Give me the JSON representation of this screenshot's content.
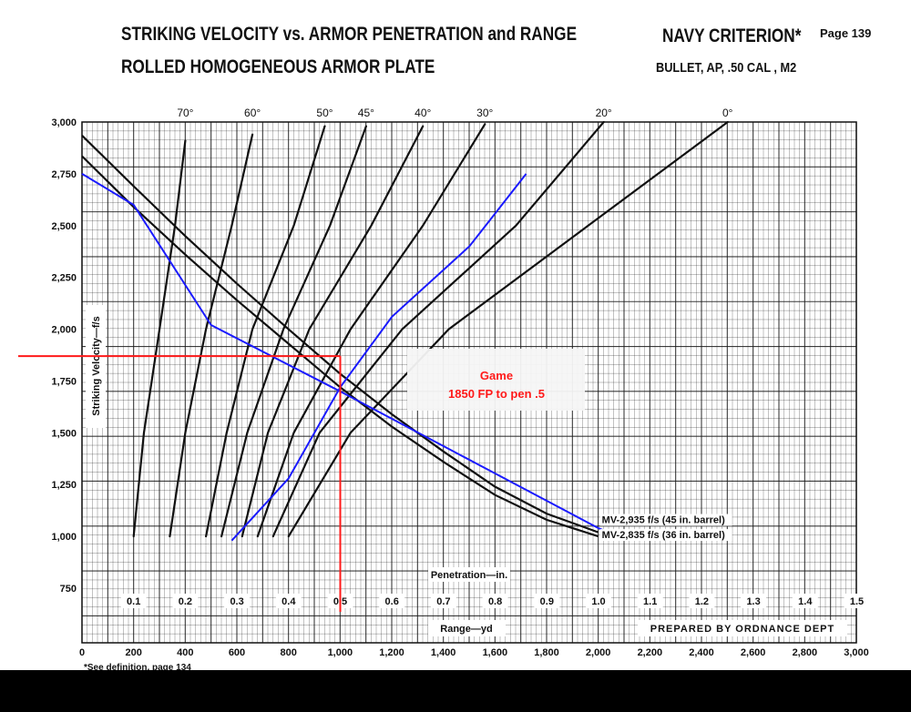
{
  "header": {
    "title_line1": "STRIKING VELOCITY vs. ARMOR PENETRATION and RANGE",
    "title_line2": "ROLLED HOMOGENEOUS ARMOR PLATE",
    "criterion": "NAVY CRITERION*",
    "page": "Page 139",
    "bullet": "BULLET, AP, .50 CAL , M2"
  },
  "footnote": "*See definition, page 134",
  "prepared_by": "PREPARED BY ORDNANCE DEPT",
  "annotation": {
    "line1": "Game",
    "line2": "1850 FP to pen .5"
  },
  "colors": {
    "grid": "#1a1a1a",
    "curves": "#111111",
    "overlay_blue": "#1a1aff",
    "overlay_red": "#ff1a1a",
    "annotation_text": "#ff1a1a"
  },
  "chart_data": {
    "type": "line",
    "title": "STRIKING VELOCITY vs. ARMOR PENETRATION and RANGE",
    "ylabel": "Striking Velocity—f/s",
    "xlabel_penetration": "Penetration—in.",
    "xlabel_range": "Range—yd",
    "ylim": [
      750,
      3000
    ],
    "y_ticks": [
      "3,000",
      "2,750",
      "2,500",
      "2,250",
      "2,000",
      "1,750",
      "1,500",
      "1,250",
      "1,000",
      "750"
    ],
    "penetration_ticks": [
      "0.1",
      "0.2",
      "0.3",
      "0.4",
      "0.5",
      "0.6",
      "0.7",
      "0.8",
      "0.9",
      "1.0",
      "1.1",
      "1.2",
      "1.3",
      "1.4",
      "1.5"
    ],
    "range_ticks": [
      "0",
      "200",
      "400",
      "600",
      "800",
      "1,000",
      "1,200",
      "1,400",
      "1,600",
      "1,800",
      "2,000",
      "2,200",
      "2,400",
      "2,600",
      "2,800",
      "3,000"
    ],
    "obliquity_labels": [
      "70°",
      "60°",
      "50°",
      "45°",
      "40°",
      "30°",
      "20°",
      "0°"
    ],
    "grid": true,
    "velocity_range_series": [
      {
        "name": "MV-2,935 f/s (45 in. barrel)",
        "x": [
          0,
          200,
          400,
          600,
          800,
          1000,
          1200,
          1400,
          1600,
          1800,
          2000
        ],
        "y": [
          2935,
          2690,
          2450,
          2220,
          2000,
          1785,
          1590,
          1410,
          1240,
          1110,
          1020
        ]
      },
      {
        "name": "MV-2,835 f/s (36 in. barrel)",
        "x": [
          0,
          200,
          400,
          600,
          800,
          1000,
          1200,
          1400,
          1600,
          1800,
          2000
        ],
        "y": [
          2835,
          2590,
          2360,
          2140,
          1930,
          1720,
          1530,
          1360,
          1200,
          1080,
          1000
        ]
      }
    ],
    "penetration_series": [
      {
        "obliquity": "70°",
        "x": [
          0.1,
          0.12,
          0.15,
          0.18,
          0.2
        ],
        "y": [
          1000,
          1500,
          2000,
          2500,
          2910
        ]
      },
      {
        "obliquity": "60°",
        "x": [
          0.17,
          0.2,
          0.24,
          0.29,
          0.33
        ],
        "y": [
          1000,
          1500,
          2000,
          2500,
          2940
        ]
      },
      {
        "obliquity": "50°",
        "x": [
          0.24,
          0.28,
          0.33,
          0.41,
          0.47
        ],
        "y": [
          1000,
          1500,
          2000,
          2500,
          2980
        ]
      },
      {
        "obliquity": "45°",
        "x": [
          0.27,
          0.32,
          0.39,
          0.48,
          0.55
        ],
        "y": [
          1000,
          1500,
          2000,
          2500,
          2980
        ]
      },
      {
        "obliquity": "40°",
        "x": [
          0.31,
          0.36,
          0.44,
          0.56,
          0.66
        ],
        "y": [
          1000,
          1500,
          2000,
          2500,
          2980
        ]
      },
      {
        "obliquity": "30°",
        "x": [
          0.34,
          0.41,
          0.52,
          0.66,
          0.78
        ],
        "y": [
          1000,
          1500,
          2000,
          2500,
          2990
        ]
      },
      {
        "obliquity": "20°",
        "x": [
          0.37,
          0.46,
          0.62,
          0.84,
          1.01
        ],
        "y": [
          1000,
          1500,
          2000,
          2500,
          3000
        ]
      },
      {
        "obliquity": "0°",
        "x": [
          0.4,
          0.52,
          0.71,
          0.98,
          1.25
        ],
        "y": [
          1000,
          1500,
          2000,
          2500,
          3000
        ]
      }
    ],
    "overlay_blue": [
      {
        "penetration": [
          0.29,
          0.4,
          0.5,
          0.6,
          0.75,
          0.86
        ],
        "velocity": [
          980,
          1280,
          1720,
          2060,
          2400,
          2750
        ]
      },
      {
        "range_yd": [
          0,
          200,
          500,
          1000,
          2000,
          2020
        ],
        "velocity": [
          2750,
          2600,
          2020,
          1700,
          1040,
          1030
        ]
      }
    ],
    "overlay_red": {
      "penetration": 0.5,
      "velocity": 1870
    }
  }
}
